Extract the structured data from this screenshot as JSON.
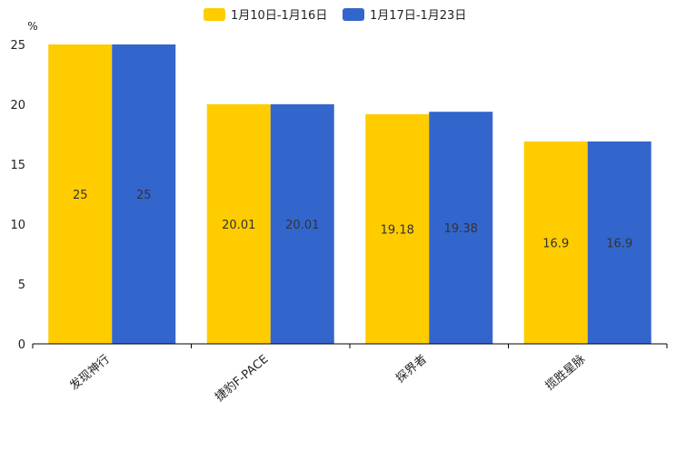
{
  "chart_data": {
    "type": "bar",
    "title": "",
    "ylabel": "%",
    "xlabel": "",
    "ylim": [
      0,
      25
    ],
    "yticks": [
      0,
      5,
      10,
      15,
      20,
      25
    ],
    "legend_position": "top-center",
    "grid": false,
    "categories": [
      "发现神行",
      "捷豹F-PACE",
      "探界者",
      "揽胜星脉"
    ],
    "series": [
      {
        "name": "1月10日-1月16日",
        "color": "#FFCC00",
        "values": [
          25,
          20.01,
          19.18,
          16.9
        ],
        "labels": [
          "25",
          "20.01",
          "19.18",
          "16.9"
        ]
      },
      {
        "name": "1月17日-1月23日",
        "color": "#3366CC",
        "values": [
          25,
          20.01,
          19.38,
          16.9
        ],
        "labels": [
          "25",
          "20.01",
          "19.38",
          "16.9"
        ]
      }
    ]
  }
}
